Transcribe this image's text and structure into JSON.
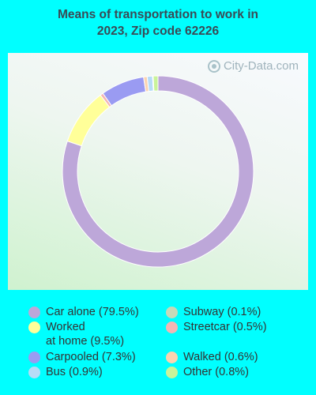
{
  "title_line1": "Means of transportation to work in",
  "title_line2": "2023, Zip code 62226",
  "watermark": "City-Data.com",
  "chart_data": {
    "type": "pie",
    "style": "donut",
    "title": "Means of transportation to work in 2023, Zip code 62226",
    "slices": [
      {
        "label": "Car alone",
        "value": 79.5,
        "color": "#bda7d9"
      },
      {
        "label": "Worked at home",
        "value": 9.5,
        "color": "#ffff99"
      },
      {
        "label": "Streetcar",
        "value": 0.5,
        "color": "#f4b6b4"
      },
      {
        "label": "Carpooled",
        "value": 7.3,
        "color": "#9a9bf2"
      },
      {
        "label": "Walked",
        "value": 0.6,
        "color": "#fbd3b0"
      },
      {
        "label": "Bus",
        "value": 0.9,
        "color": "#b7dcf7"
      },
      {
        "label": "Subway",
        "value": 0.1,
        "color": "#c6d9b8"
      },
      {
        "label": "Other",
        "value": 0.8,
        "color": "#c9f39a"
      }
    ],
    "legend": [
      {
        "text": "Car alone (79.5%)",
        "color": "#bda7d9"
      },
      {
        "text": "Worked\nat home (9.5%)",
        "color": "#ffff99"
      },
      {
        "text": "Carpooled (7.3%)",
        "color": "#9a9bf2"
      },
      {
        "text": "Bus (0.9%)",
        "color": "#b7dcf7"
      },
      {
        "text": "Subway (0.1%)",
        "color": "#c6d9b8"
      },
      {
        "text": "Streetcar (0.5%)",
        "color": "#f4b6b4"
      },
      {
        "text": "Walked (0.6%)",
        "color": "#fbd3b0"
      },
      {
        "text": "Other (0.8%)",
        "color": "#c9f39a"
      }
    ],
    "legend_placement": "bottom"
  }
}
